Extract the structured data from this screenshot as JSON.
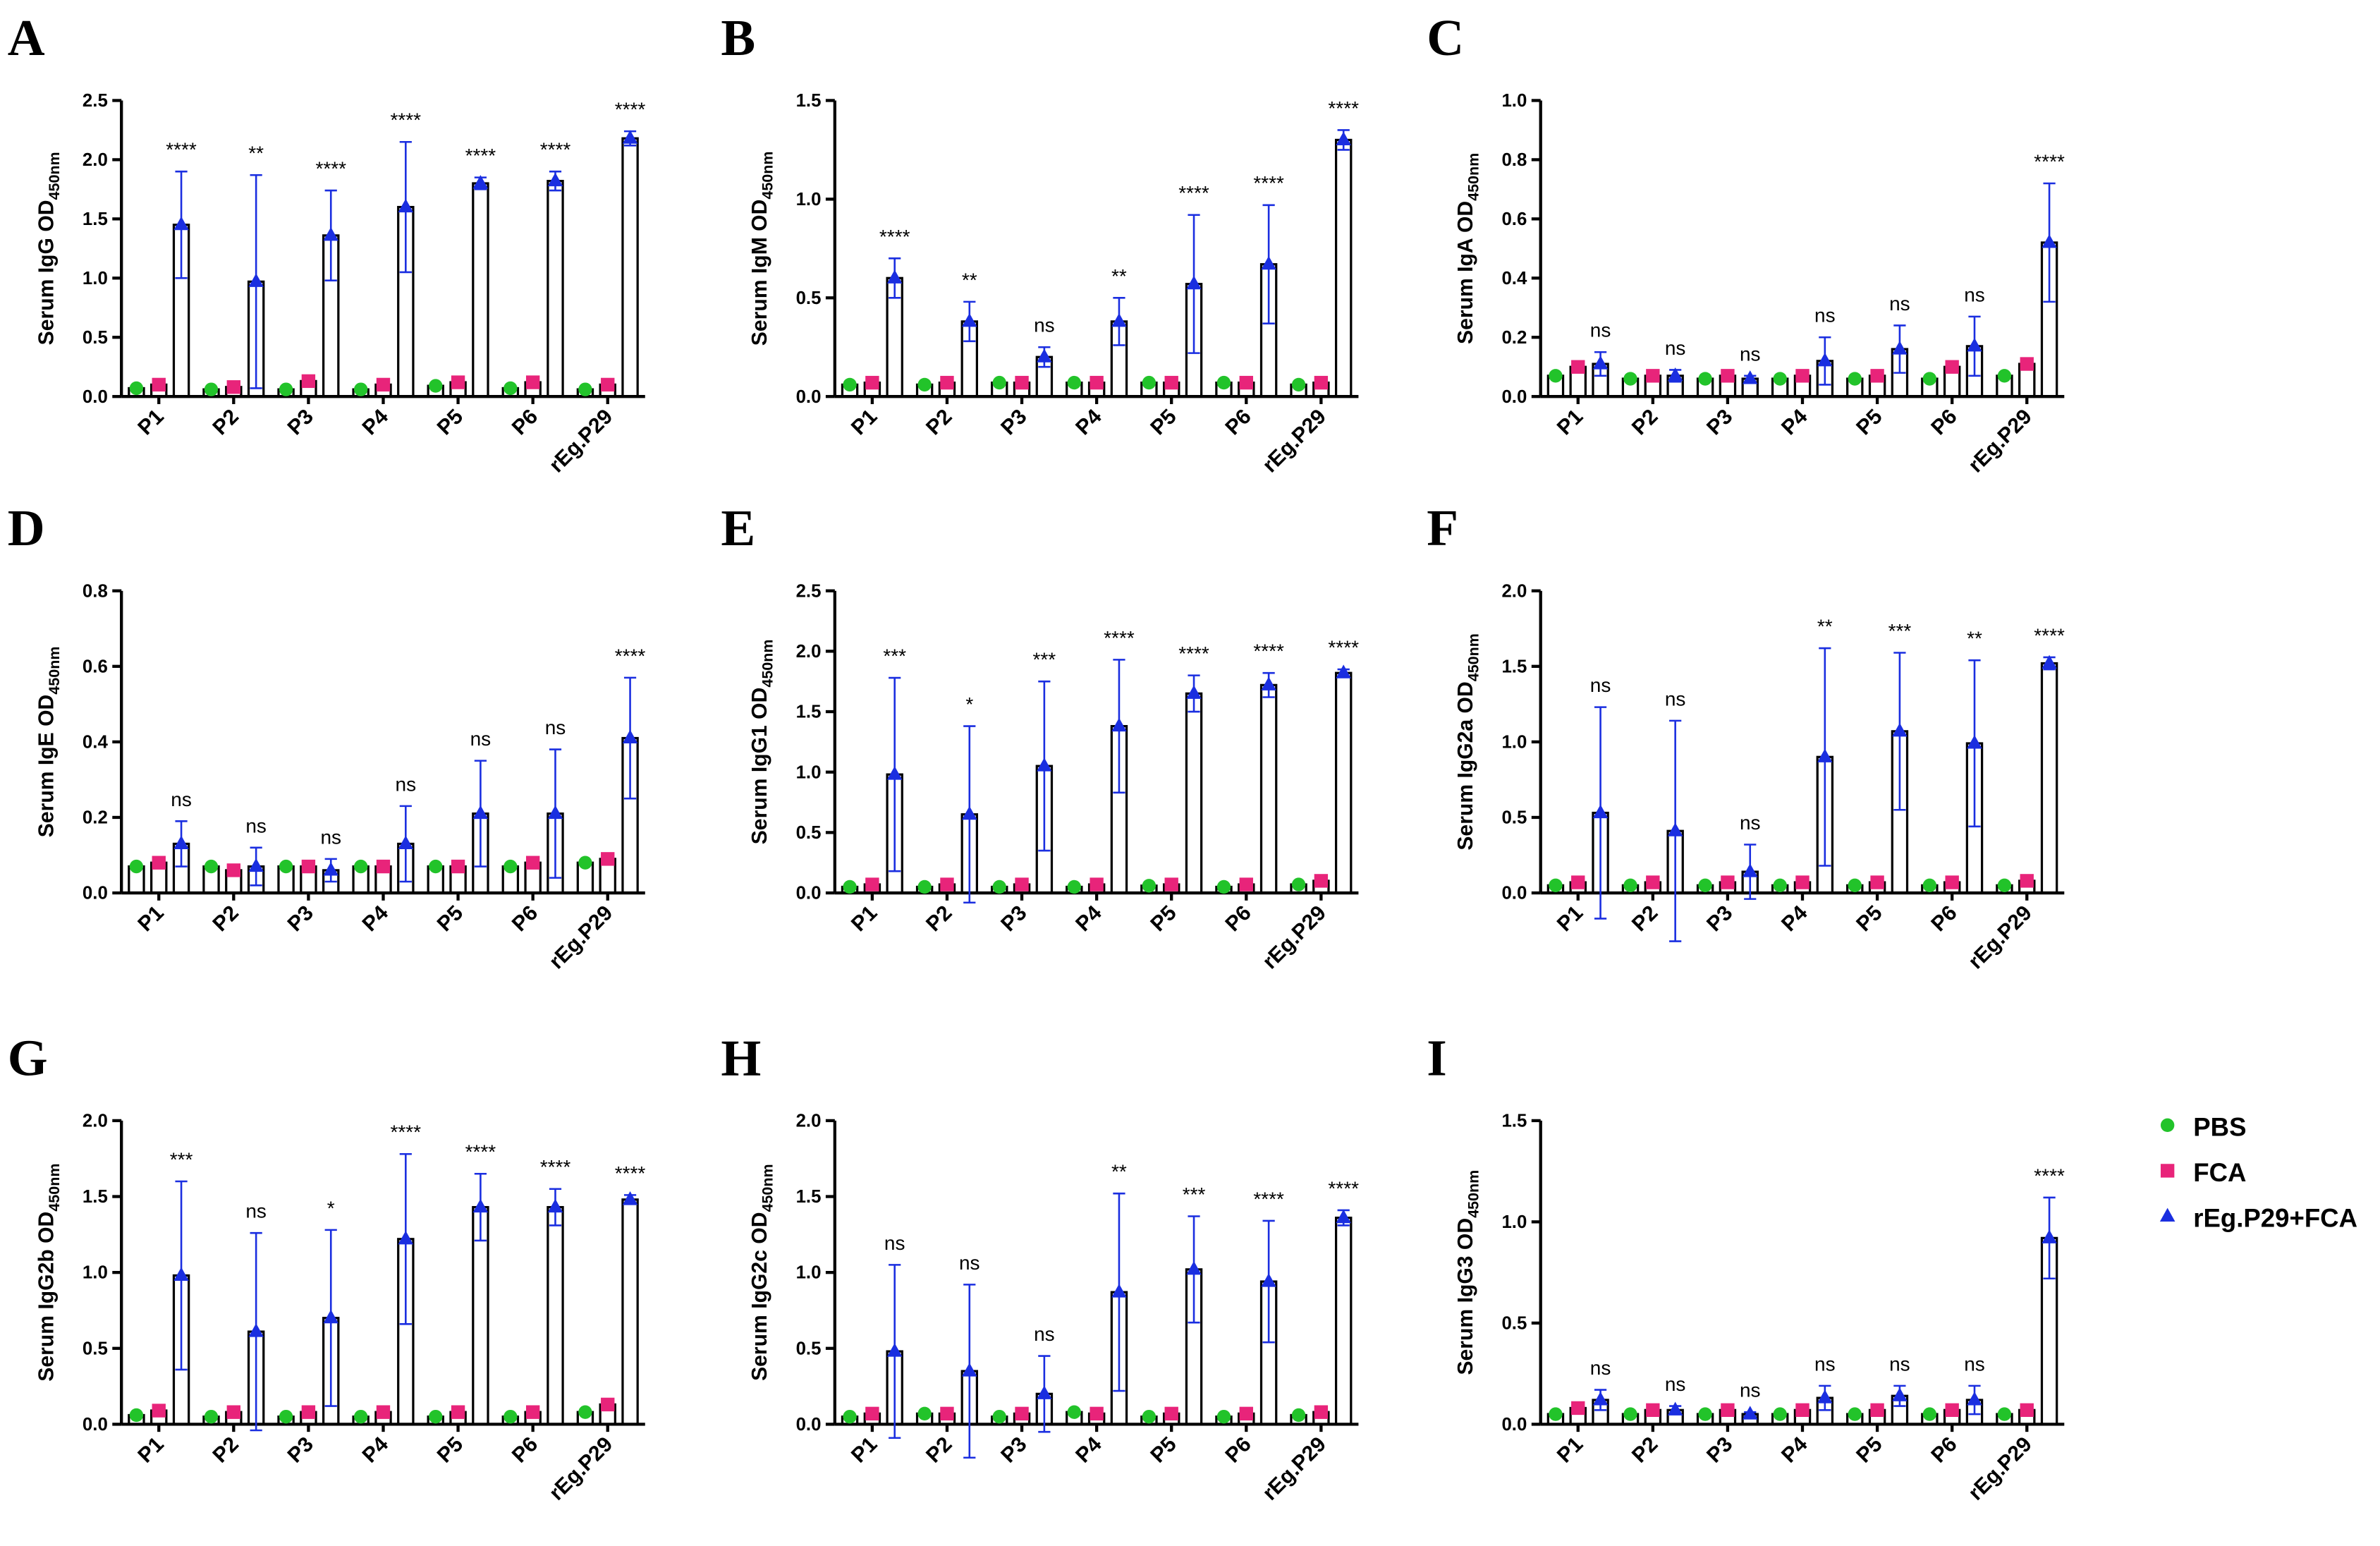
{
  "chart_data": [
    {
      "type": "bar",
      "panel": "A",
      "ylabel": "Serum IgG OD",
      "ylabel_sub": "450nm",
      "categories": [
        "P1",
        "P2",
        "P3",
        "P4",
        "P5",
        "P6",
        "rEg.P29"
      ],
      "series": [
        {
          "name": "PBS",
          "color": "#22c32a",
          "values": [
            0.07,
            0.06,
            0.06,
            0.06,
            0.09,
            0.07,
            0.06
          ]
        },
        {
          "name": "FCA",
          "color": "#e8247a",
          "values": [
            0.1,
            0.08,
            0.13,
            0.1,
            0.12,
            0.12,
            0.1
          ]
        },
        {
          "name": "rEg.P29+FCA",
          "color": "#1a2ee0",
          "values": [
            1.45,
            0.97,
            1.36,
            1.6,
            1.8,
            1.82,
            2.18
          ],
          "errors": [
            0.45,
            0.9,
            0.38,
            0.55,
            0.05,
            0.08,
            0.06
          ]
        }
      ],
      "annotations": [
        "****",
        "**",
        "****",
        "****",
        "****",
        "****",
        "****"
      ],
      "ylim": [
        0,
        2.5
      ],
      "yticks": [
        {
          "value": 0,
          "label": "0.0"
        },
        0.5,
        {
          "value": 1,
          "label": "1.0"
        },
        1.5,
        {
          "value": 2,
          "label": "2.0"
        },
        2.5
      ]
    },
    {
      "type": "bar",
      "panel": "B",
      "ylabel": "Serum IgM OD",
      "ylabel_sub": "450nm",
      "categories": [
        "P1",
        "P2",
        "P3",
        "P4",
        "P5",
        "P6",
        "rEg.P29"
      ],
      "series": [
        {
          "name": "PBS",
          "color": "#22c32a",
          "values": [
            0.06,
            0.06,
            0.07,
            0.07,
            0.07,
            0.07,
            0.06
          ]
        },
        {
          "name": "FCA",
          "color": "#e8247a",
          "values": [
            0.07,
            0.07,
            0.07,
            0.07,
            0.07,
            0.07,
            0.07
          ]
        },
        {
          "name": "rEg.P29+FCA",
          "color": "#1a2ee0",
          "values": [
            0.6,
            0.38,
            0.2,
            0.38,
            0.57,
            0.67,
            1.3
          ],
          "errors": [
            0.1,
            0.1,
            0.05,
            0.12,
            0.35,
            0.3,
            0.05
          ]
        }
      ],
      "annotations": [
        "****",
        "**",
        "ns",
        "**",
        "****",
        "****",
        "****"
      ],
      "ylim": [
        0,
        1.5
      ],
      "yticks": [
        {
          "value": 0,
          "label": "0.0"
        },
        0.5,
        {
          "value": 1,
          "label": "1.0"
        },
        1.5
      ]
    },
    {
      "type": "bar",
      "panel": "C",
      "ylabel": "Serum IgA OD",
      "ylabel_sub": "450nm",
      "categories": [
        "P1",
        "P2",
        "P3",
        "P4",
        "P5",
        "P6",
        "rEg.P29"
      ],
      "series": [
        {
          "name": "PBS",
          "color": "#22c32a",
          "values": [
            0.07,
            0.06,
            0.06,
            0.06,
            0.06,
            0.06,
            0.07
          ]
        },
        {
          "name": "FCA",
          "color": "#e8247a",
          "values": [
            0.1,
            0.07,
            0.07,
            0.07,
            0.07,
            0.1,
            0.11
          ]
        },
        {
          "name": "rEg.P29+FCA",
          "color": "#1a2ee0",
          "values": [
            0.11,
            0.07,
            0.06,
            0.12,
            0.16,
            0.17,
            0.52
          ],
          "errors": [
            0.04,
            0.02,
            0.01,
            0.08,
            0.08,
            0.1,
            0.2
          ]
        }
      ],
      "annotations": [
        "ns",
        "ns",
        "ns",
        "ns",
        "ns",
        "ns",
        "****"
      ],
      "ylim": [
        0,
        1.0
      ],
      "yticks": [
        {
          "value": 0,
          "label": "0.0"
        },
        0.2,
        0.4,
        0.6,
        0.8,
        {
          "value": 1,
          "label": "1.0"
        }
      ]
    },
    {
      "type": "bar",
      "panel": "D",
      "ylabel": "Serum IgE OD",
      "ylabel_sub": "450nm",
      "categories": [
        "P1",
        "P2",
        "P3",
        "P4",
        "P5",
        "P6",
        "rEg.P29"
      ],
      "series": [
        {
          "name": "PBS",
          "color": "#22c32a",
          "values": [
            0.07,
            0.07,
            0.07,
            0.07,
            0.07,
            0.07,
            0.08
          ]
        },
        {
          "name": "FCA",
          "color": "#e8247a",
          "values": [
            0.08,
            0.06,
            0.07,
            0.07,
            0.07,
            0.08,
            0.09
          ]
        },
        {
          "name": "rEg.P29+FCA",
          "color": "#1a2ee0",
          "values": [
            0.13,
            0.07,
            0.06,
            0.13,
            0.21,
            0.21,
            0.41
          ],
          "errors": [
            0.06,
            0.05,
            0.03,
            0.1,
            0.14,
            0.17,
            0.16
          ]
        }
      ],
      "annotations": [
        "ns",
        "ns",
        "ns",
        "ns",
        "ns",
        "ns",
        "****"
      ],
      "ylim": [
        0,
        0.8
      ],
      "yticks": [
        {
          "value": 0,
          "label": "0.0"
        },
        0.2,
        0.4,
        0.6,
        0.8
      ]
    },
    {
      "type": "bar",
      "panel": "E",
      "ylabel": "Serum IgG1 OD",
      "ylabel_sub": "450nm",
      "categories": [
        "P1",
        "P2",
        "P3",
        "P4",
        "P5",
        "P6",
        "rEg.P29"
      ],
      "series": [
        {
          "name": "PBS",
          "color": "#22c32a",
          "values": [
            0.05,
            0.05,
            0.05,
            0.05,
            0.06,
            0.05,
            0.07
          ]
        },
        {
          "name": "FCA",
          "color": "#e8247a",
          "values": [
            0.07,
            0.07,
            0.07,
            0.07,
            0.07,
            0.07,
            0.1
          ]
        },
        {
          "name": "rEg.P29+FCA",
          "color": "#1a2ee0",
          "values": [
            0.98,
            0.65,
            1.05,
            1.38,
            1.65,
            1.72,
            1.82
          ],
          "errors": [
            0.8,
            0.73,
            0.7,
            0.55,
            0.15,
            0.1,
            0.03
          ]
        }
      ],
      "annotations": [
        "***",
        "*",
        "***",
        "****",
        "****",
        "****",
        "****"
      ],
      "ylim": [
        0,
        2.5
      ],
      "yticks": [
        {
          "value": 0,
          "label": "0.0"
        },
        0.5,
        {
          "value": 1,
          "label": "1.0"
        },
        1.5,
        {
          "value": 2,
          "label": "2.0"
        },
        2.5
      ]
    },
    {
      "type": "bar",
      "panel": "F",
      "ylabel": "Serum IgG2a OD",
      "ylabel_sub": "450nm",
      "categories": [
        "P1",
        "P2",
        "P3",
        "P4",
        "P5",
        "P6",
        "rEg.P29"
      ],
      "series": [
        {
          "name": "PBS",
          "color": "#22c32a",
          "values": [
            0.05,
            0.05,
            0.05,
            0.05,
            0.05,
            0.05,
            0.05
          ]
        },
        {
          "name": "FCA",
          "color": "#e8247a",
          "values": [
            0.07,
            0.07,
            0.07,
            0.07,
            0.07,
            0.07,
            0.08
          ]
        },
        {
          "name": "rEg.P29+FCA",
          "color": "#1a2ee0",
          "values": [
            0.53,
            0.41,
            0.14,
            0.9,
            1.07,
            0.99,
            1.52
          ],
          "errors": [
            0.7,
            0.73,
            0.18,
            0.72,
            0.52,
            0.55,
            0.04
          ]
        }
      ],
      "annotations": [
        "ns",
        "ns",
        "ns",
        "**",
        "***",
        "**",
        "****"
      ],
      "ylim": [
        0,
        2.0
      ],
      "yticks": [
        {
          "value": 0,
          "label": "0.0"
        },
        0.5,
        {
          "value": 1,
          "label": "1.0"
        },
        1.5,
        {
          "value": 2,
          "label": "2.0"
        }
      ]
    },
    {
      "type": "bar",
      "panel": "G",
      "ylabel": "Serum IgG2b OD",
      "ylabel_sub": "450nm",
      "categories": [
        "P1",
        "P2",
        "P3",
        "P4",
        "P5",
        "P6",
        "rEg.P29"
      ],
      "series": [
        {
          "name": "PBS",
          "color": "#22c32a",
          "values": [
            0.06,
            0.05,
            0.05,
            0.05,
            0.05,
            0.05,
            0.08
          ]
        },
        {
          "name": "FCA",
          "color": "#e8247a",
          "values": [
            0.09,
            0.08,
            0.08,
            0.08,
            0.08,
            0.08,
            0.13
          ]
        },
        {
          "name": "rEg.P29+FCA",
          "color": "#1a2ee0",
          "values": [
            0.98,
            0.61,
            0.7,
            1.22,
            1.43,
            1.43,
            1.48
          ],
          "errors": [
            0.62,
            0.65,
            0.58,
            0.56,
            0.22,
            0.12,
            0.03
          ]
        }
      ],
      "annotations": [
        "***",
        "ns",
        "*",
        "****",
        "****",
        "****",
        "****"
      ],
      "ylim": [
        0,
        2.0
      ],
      "yticks": [
        {
          "value": 0,
          "label": "0.0"
        },
        0.5,
        {
          "value": 1,
          "label": "1.0"
        },
        1.5,
        {
          "value": 2,
          "label": "2.0"
        }
      ]
    },
    {
      "type": "bar",
      "panel": "H",
      "ylabel": "Serum IgG2c OD",
      "ylabel_sub": "450nm",
      "categories": [
        "P1",
        "P2",
        "P3",
        "P4",
        "P5",
        "P6",
        "rEg.P29"
      ],
      "series": [
        {
          "name": "PBS",
          "color": "#22c32a",
          "values": [
            0.05,
            0.07,
            0.05,
            0.08,
            0.05,
            0.05,
            0.06
          ]
        },
        {
          "name": "FCA",
          "color": "#e8247a",
          "values": [
            0.07,
            0.07,
            0.07,
            0.07,
            0.07,
            0.07,
            0.08
          ]
        },
        {
          "name": "rEg.P29+FCA",
          "color": "#1a2ee0",
          "values": [
            0.48,
            0.35,
            0.2,
            0.87,
            1.02,
            0.94,
            1.36
          ],
          "errors": [
            0.57,
            0.57,
            0.25,
            0.65,
            0.35,
            0.4,
            0.05
          ]
        }
      ],
      "annotations": [
        "ns",
        "ns",
        "ns",
        "**",
        "***",
        "****",
        "****"
      ],
      "ylim": [
        0,
        2.0
      ],
      "yticks": [
        {
          "value": 0,
          "label": "0.0"
        },
        0.5,
        {
          "value": 1,
          "label": "1.0"
        },
        1.5,
        {
          "value": 2,
          "label": "2.0"
        }
      ]
    },
    {
      "type": "bar",
      "panel": "I",
      "ylabel": "Serum IgG3 OD",
      "ylabel_sub": "450nm",
      "categories": [
        "P1",
        "P2",
        "P3",
        "P4",
        "P5",
        "P6",
        "rEg.P29"
      ],
      "series": [
        {
          "name": "PBS",
          "color": "#22c32a",
          "values": [
            0.05,
            0.05,
            0.05,
            0.05,
            0.05,
            0.05,
            0.05
          ]
        },
        {
          "name": "FCA",
          "color": "#e8247a",
          "values": [
            0.08,
            0.07,
            0.07,
            0.07,
            0.07,
            0.07,
            0.07
          ]
        },
        {
          "name": "rEg.P29+FCA",
          "color": "#1a2ee0",
          "values": [
            0.12,
            0.07,
            0.05,
            0.13,
            0.14,
            0.12,
            0.92
          ],
          "errors": [
            0.05,
            0.02,
            0.01,
            0.06,
            0.05,
            0.07,
            0.2
          ]
        }
      ],
      "annotations": [
        "ns",
        "ns",
        "ns",
        "ns",
        "ns",
        "ns",
        "****"
      ],
      "ylim": [
        0,
        1.5
      ],
      "yticks": [
        {
          "value": 0,
          "label": "0.0"
        },
        0.5,
        {
          "value": 1,
          "label": "1.0"
        },
        1.5
      ]
    }
  ]
}
